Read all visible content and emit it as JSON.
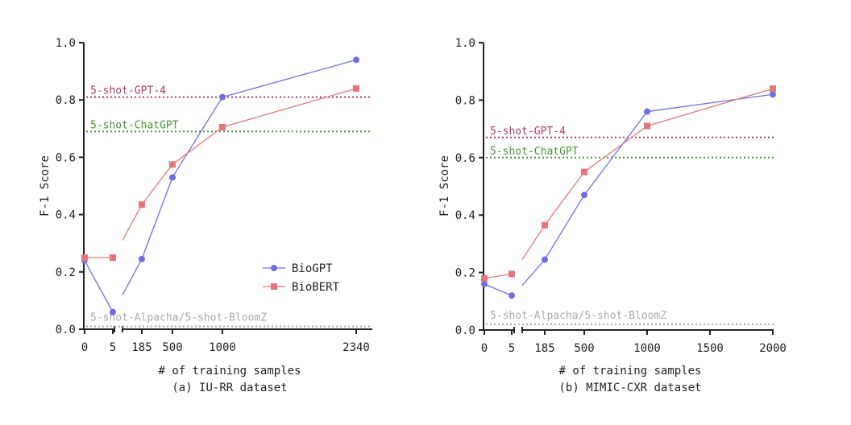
{
  "colors": {
    "biogpt": "#6e6ee8",
    "biobert": "#e8747a",
    "gpt4": "#b03a6a",
    "chatgpt": "#3f9a2e",
    "alpaca": "#aaaaaa",
    "axis": "#222222"
  },
  "chart_data": [
    {
      "type": "line",
      "caption": "(a)  IU-RR dataset",
      "xlabel": "# of training samples",
      "ylabel": "F-1 Score",
      "ylim": [
        0,
        1.0
      ],
      "yticks": [
        0.0,
        0.2,
        0.4,
        0.6,
        0.8,
        1.0
      ],
      "ytick_labels": [
        "0.0",
        "0.2",
        "0.4",
        "0.6",
        "0.8",
        "1.0"
      ],
      "xticks": [
        0,
        5,
        185,
        500,
        1000,
        2340
      ],
      "xtick_labels": [
        "0",
        "5",
        "185",
        "500",
        "1000",
        "2340"
      ],
      "x_axis_break": true,
      "legend_position": "lower-right",
      "series": [
        {
          "name": "BioGPT",
          "marker": "circle",
          "x": [
            0,
            5,
            185,
            500,
            1000,
            2340
          ],
          "y": [
            0.24,
            0.06,
            0.245,
            0.53,
            0.81,
            0.94
          ]
        },
        {
          "name": "BioBERT",
          "marker": "square",
          "x": [
            0,
            5,
            185,
            500,
            1000,
            2340
          ],
          "y": [
            0.25,
            0.25,
            0.435,
            0.575,
            0.705,
            0.84
          ]
        }
      ],
      "reference_lines": [
        {
          "label": "5-shot-GPT-4",
          "y": 0.81,
          "style": "dotted"
        },
        {
          "label": "5-shot-ChatGPT",
          "y": 0.69,
          "style": "dotted"
        },
        {
          "label": "5-shot-Alpacha/5-shot-BloomZ",
          "y": 0.01,
          "style": "dotted"
        }
      ]
    },
    {
      "type": "line",
      "caption": "(b)  MIMIC-CXR dataset",
      "xlabel": "# of training samples",
      "ylabel": "F-1 Score",
      "ylim": [
        0,
        1.0
      ],
      "yticks": [
        0.0,
        0.2,
        0.4,
        0.6,
        0.8,
        1.0
      ],
      "ytick_labels": [
        "0.0",
        "0.2",
        "0.4",
        "0.6",
        "0.8",
        "1.0"
      ],
      "xticks": [
        0,
        5,
        185,
        500,
        1000,
        1500,
        2000
      ],
      "xtick_labels": [
        "0",
        "5",
        "185",
        "500",
        "1000",
        "1500",
        "2000"
      ],
      "x_axis_break": true,
      "series": [
        {
          "name": "BioGPT",
          "marker": "circle",
          "x": [
            0,
            5,
            185,
            500,
            1000,
            2000
          ],
          "y": [
            0.16,
            0.12,
            0.245,
            0.47,
            0.76,
            0.82
          ]
        },
        {
          "name": "BioBERT",
          "marker": "square",
          "x": [
            0,
            5,
            185,
            500,
            1000,
            2000
          ],
          "y": [
            0.18,
            0.195,
            0.365,
            0.55,
            0.71,
            0.84
          ]
        }
      ],
      "reference_lines": [
        {
          "label": "5-shot-GPT-4",
          "y": 0.67,
          "style": "dotted"
        },
        {
          "label": "5-shot-ChatGPT",
          "y": 0.6,
          "style": "dotted"
        },
        {
          "label": "5-shot-Alpacha/5-shot-BloomZ",
          "y": 0.02,
          "style": "dotted"
        }
      ]
    }
  ]
}
